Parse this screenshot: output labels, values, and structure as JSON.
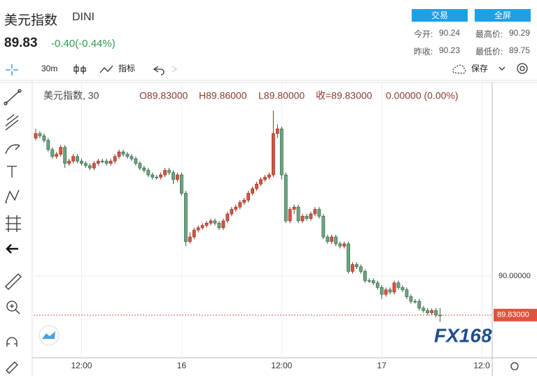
{
  "header": {
    "title": "美元指数",
    "symbol": "DINI",
    "price": "89.83",
    "change": "-0.40(-0.44%)",
    "buttons": [
      "交易",
      "全屏"
    ],
    "stats": [
      [
        "今开:",
        "90.24"
      ],
      [
        "最高价:",
        "90.29"
      ],
      [
        "昨收:",
        "90.23"
      ],
      [
        "最低价:",
        "89.75"
      ]
    ]
  },
  "toolbar": {
    "interval": "30m",
    "indicators": "指标",
    "save": "保存"
  },
  "watermark": "FX168",
  "chart_data": {
    "type": "candlestick",
    "legend": [
      "美元指数, 30",
      "O89.83000",
      "H89.86000",
      "L89.80000",
      "收=89.83000",
      "0.00000 (0.00%)"
    ],
    "up_color": "#d75442",
    "down_color": "#6ba583",
    "open": [
      90.6,
      90.62,
      90.61,
      90.59,
      90.55,
      90.52,
      90.53,
      90.56,
      90.49,
      90.5,
      90.52,
      90.5,
      90.49,
      90.48,
      90.47,
      90.49,
      90.5,
      90.5,
      90.49,
      90.5,
      90.52,
      90.54,
      90.53,
      90.52,
      90.51,
      90.49,
      90.47,
      90.46,
      90.44,
      90.43,
      90.43,
      90.44,
      90.46,
      90.45,
      90.42,
      90.44,
      90.36,
      90.15,
      90.17,
      90.2,
      90.21,
      90.22,
      90.23,
      90.24,
      90.23,
      90.21,
      90.24,
      90.27,
      90.29,
      90.3,
      90.32,
      90.33,
      90.36,
      90.38,
      90.4,
      90.42,
      90.43,
      90.44,
      90.62,
      90.64,
      90.44,
      90.24,
      90.29,
      90.3,
      90.24,
      90.26,
      90.25,
      90.27,
      90.29,
      90.26,
      90.17,
      90.15,
      90.17,
      90.14,
      90.13,
      90.14,
      90.02,
      90.05,
      90.04,
      90.02,
      89.98,
      89.98,
      89.97,
      89.95,
      89.92,
      89.94,
      89.93,
      89.97,
      89.95,
      89.94,
      89.91,
      89.89,
      89.89,
      89.86,
      89.85,
      89.84,
      89.85,
      89.83
    ],
    "high": [
      90.64,
      90.63,
      90.62,
      90.6,
      90.56,
      90.54,
      90.57,
      90.57,
      90.51,
      90.53,
      90.53,
      90.51,
      90.5,
      90.49,
      90.5,
      90.51,
      90.51,
      90.51,
      90.51,
      90.53,
      90.55,
      90.55,
      90.54,
      90.53,
      90.52,
      90.5,
      90.48,
      90.47,
      90.45,
      90.44,
      90.45,
      90.47,
      90.47,
      90.46,
      90.45,
      90.45,
      90.37,
      90.19,
      90.21,
      90.22,
      90.23,
      90.24,
      90.25,
      90.25,
      90.24,
      90.25,
      90.28,
      90.3,
      90.31,
      90.33,
      90.34,
      90.37,
      90.39,
      90.41,
      90.43,
      90.44,
      90.45,
      90.72,
      90.66,
      90.65,
      90.45,
      90.3,
      90.31,
      90.31,
      90.27,
      90.27,
      90.28,
      90.3,
      90.3,
      90.27,
      90.18,
      90.18,
      90.18,
      90.15,
      90.15,
      90.15,
      90.06,
      90.06,
      90.05,
      90.03,
      89.99,
      89.99,
      89.98,
      89.96,
      89.95,
      89.95,
      89.98,
      89.98,
      89.96,
      89.95,
      89.92,
      89.9,
      89.9,
      89.87,
      89.86,
      89.86,
      89.86,
      89.86
    ],
    "low": [
      90.59,
      90.6,
      90.58,
      90.54,
      90.51,
      90.51,
      90.52,
      90.47,
      90.48,
      90.49,
      90.49,
      90.48,
      90.47,
      90.46,
      90.46,
      90.48,
      90.49,
      90.48,
      90.48,
      90.49,
      90.51,
      90.52,
      90.51,
      90.5,
      90.48,
      90.46,
      90.45,
      90.43,
      90.42,
      90.42,
      90.42,
      90.43,
      90.44,
      90.4,
      90.41,
      90.35,
      90.13,
      90.14,
      90.16,
      90.19,
      90.2,
      90.21,
      90.22,
      90.22,
      90.2,
      90.2,
      90.23,
      90.26,
      90.28,
      90.29,
      90.31,
      90.32,
      90.35,
      90.37,
      90.39,
      90.41,
      90.42,
      90.43,
      90.6,
      90.42,
      90.23,
      90.23,
      90.27,
      90.23,
      90.23,
      90.24,
      90.24,
      90.26,
      90.25,
      90.16,
      90.14,
      90.14,
      90.13,
      90.12,
      90.12,
      90.01,
      90.01,
      90.03,
      90.01,
      89.97,
      89.97,
      89.96,
      89.94,
      89.9,
      89.91,
      89.92,
      89.92,
      89.94,
      89.93,
      89.9,
      89.88,
      89.88,
      89.85,
      89.84,
      89.83,
      89.83,
      89.82,
      89.8
    ],
    "close": [
      90.62,
      90.61,
      90.59,
      90.55,
      90.52,
      90.53,
      90.56,
      90.49,
      90.5,
      90.52,
      90.5,
      90.49,
      90.48,
      90.47,
      90.49,
      90.5,
      90.5,
      90.49,
      90.5,
      90.52,
      90.54,
      90.53,
      90.52,
      90.51,
      90.49,
      90.47,
      90.46,
      90.44,
      90.43,
      90.43,
      90.44,
      90.46,
      90.45,
      90.42,
      90.44,
      90.36,
      90.15,
      90.17,
      90.2,
      90.21,
      90.22,
      90.23,
      90.24,
      90.23,
      90.21,
      90.24,
      90.27,
      90.29,
      90.3,
      90.32,
      90.33,
      90.36,
      90.38,
      90.4,
      90.42,
      90.43,
      90.44,
      90.62,
      90.64,
      90.44,
      90.24,
      90.29,
      90.3,
      90.24,
      90.26,
      90.25,
      90.27,
      90.29,
      90.26,
      90.17,
      90.15,
      90.17,
      90.14,
      90.13,
      90.14,
      90.02,
      90.05,
      90.04,
      90.02,
      89.98,
      89.98,
      89.97,
      89.95,
      89.92,
      89.94,
      89.93,
      89.97,
      89.95,
      89.94,
      89.91,
      89.89,
      89.89,
      89.86,
      89.85,
      89.84,
      89.85,
      89.83,
      89.83
    ],
    "xlim": [
      -0.5,
      109.5
    ],
    "xticks": [
      {
        "value": 11,
        "label": "12:00"
      },
      {
        "value": 35,
        "label": "16"
      },
      {
        "value": 59,
        "label": "12:00"
      },
      {
        "value": 83,
        "label": "17"
      },
      {
        "value": 107,
        "label": "12:0"
      }
    ],
    "ylim": [
      89.644,
      90.842
    ],
    "yticks": [
      {
        "value": 90,
        "label": "90.00000"
      }
    ],
    "last_price": {
      "value": 89.83,
      "label": "89.83000"
    },
    "grid": true
  }
}
